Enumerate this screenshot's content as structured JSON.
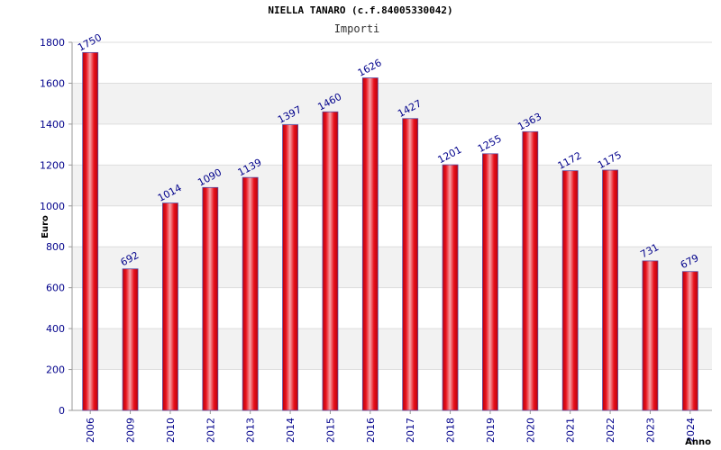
{
  "chart_data": {
    "type": "bar",
    "title": "NIELLA TANARO (c.f.84005330042)",
    "subtitle": "Importi",
    "xlabel": "Anno",
    "ylabel": "Euro",
    "categories": [
      "2006",
      "2009",
      "2010",
      "2012",
      "2013",
      "2014",
      "2015",
      "2016",
      "2017",
      "2018",
      "2019",
      "2020",
      "2021",
      "2022",
      "2023",
      "2024"
    ],
    "values": [
      1750,
      692,
      1014,
      1090,
      1139,
      1397,
      1460,
      1626,
      1427,
      1201,
      1255,
      1363,
      1172,
      1175,
      731,
      679
    ],
    "ylim": [
      0,
      1800
    ],
    "yticks": [
      0,
      200,
      400,
      600,
      800,
      1000,
      1200,
      1400,
      1600,
      1800
    ],
    "grid": true,
    "legend": "none",
    "colors": {
      "bar": "#e8101c",
      "bar_highlight": "#f6a0a6",
      "bar_edge": "#5a4aa0",
      "text": "#00008b",
      "band": "#f2f2f2",
      "grid": "#dddddd"
    }
  }
}
